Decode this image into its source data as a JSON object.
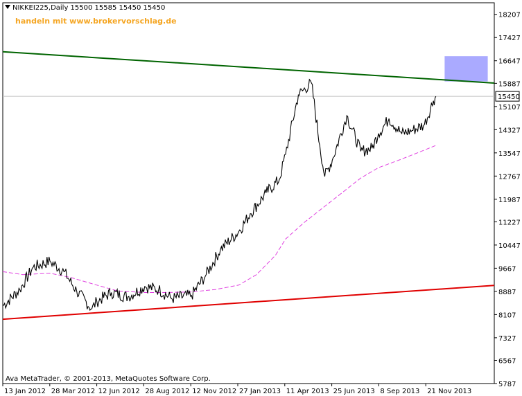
{
  "header": {
    "symbol_line": "NIKKEI225,Daily  15500 15585 15450 15450",
    "watermark": "handeln mit www.brokervorschlag.de"
  },
  "footer": {
    "copyright": "Ava MetaTrader, © 2001-2013, MetaQuotes Software Corp."
  },
  "colors": {
    "background": "#ffffff",
    "price_line": "#000000",
    "moving_average": "#e040e0",
    "upper_trendline": "#006400",
    "lower_trendline": "#e00000",
    "target_zone": "#aaaaff",
    "watermark": "#f5a623",
    "current_price_line": "#c0c0c0"
  },
  "chart_data": {
    "type": "line",
    "title": "NIKKEI225,Daily",
    "symbol": "NIKKEI225",
    "timeframe": "Daily",
    "quote": {
      "open": 15500,
      "high": 15585,
      "low": 15450,
      "close": 15450
    },
    "current_price_label": "15450",
    "y_ticks": [
      "18207",
      "17427",
      "16647",
      "15887",
      "15107",
      "14327",
      "13547",
      "12767",
      "11987",
      "11227",
      "10447",
      "9667",
      "8887",
      "8107",
      "7327",
      "6567",
      "5787"
    ],
    "x_ticks": [
      "13 Jan 2012",
      "28 Mar 2012",
      "12 Jun 2012",
      "28 Aug 2012",
      "12 Nov 2012",
      "27 Jan 2013",
      "11 Apr 2013",
      "25 Jun 2013",
      "8 Sep 2013",
      "21 Nov 2013"
    ],
    "ylim": [
      5787,
      18597
    ],
    "grid": false,
    "legend": "none",
    "series": [
      {
        "key": "close",
        "dates": [
          "2012-01-13",
          "2012-02-10",
          "2012-03-01",
          "2012-03-28",
          "2012-04-20",
          "2012-05-10",
          "2012-06-04",
          "2012-06-12",
          "2012-07-05",
          "2012-08-01",
          "2012-08-28",
          "2012-09-20",
          "2012-10-10",
          "2012-11-12",
          "2012-12-05",
          "2012-12-28",
          "2013-01-27",
          "2013-02-15",
          "2013-03-10",
          "2013-04-01",
          "2013-04-11",
          "2013-05-01",
          "2013-05-22",
          "2013-06-05",
          "2013-06-13",
          "2013-06-25",
          "2013-07-18",
          "2013-08-10",
          "2013-08-28",
          "2013-09-08",
          "2013-09-25",
          "2013-10-15",
          "2013-11-01",
          "2013-11-21",
          "2013-12-05",
          "2013-12-09"
        ],
        "values": [
          8400,
          8950,
          9700,
          9900,
          9550,
          8900,
          8300,
          8550,
          8850,
          8700,
          9050,
          8950,
          8650,
          8750,
          9450,
          10300,
          10900,
          11500,
          12200,
          12650,
          13500,
          15500,
          15900,
          13800,
          12750,
          13300,
          14800,
          13600,
          13700,
          14200,
          14700,
          14200,
          14300,
          14500,
          15300,
          15450
        ]
      },
      {
        "key": "moving_average",
        "dates": [
          "2012-01-13",
          "2012-02-15",
          "2012-03-28",
          "2012-05-01",
          "2012-06-12",
          "2012-07-15",
          "2012-08-28",
          "2012-10-01",
          "2012-11-12",
          "2012-12-20",
          "2013-01-27",
          "2013-02-25",
          "2013-03-25",
          "2013-04-11",
          "2013-05-10",
          "2013-06-10",
          "2013-07-10",
          "2013-08-10",
          "2013-09-08",
          "2013-10-10",
          "2013-11-10",
          "2013-12-09"
        ],
        "values": [
          9550,
          9450,
          9500,
          9350,
          9100,
          8900,
          8850,
          8850,
          8870,
          8950,
          9100,
          9450,
          10100,
          10650,
          11200,
          11700,
          12200,
          12700,
          13050,
          13300,
          13550,
          13800
        ]
      }
    ],
    "annotations": {
      "upper_trendline": {
        "from": [
          "2012-01-13",
          16950
        ],
        "to": [
          "2014-02-01",
          15950
        ]
      },
      "lower_trendline": {
        "from": [
          "2012-01-13",
          7950
        ],
        "to": [
          "2014-02-01",
          9030
        ]
      },
      "target_zone": {
        "from_date": "2013-12-23",
        "to_date": "2014-03-01",
        "low": 15950,
        "high": 16800
      },
      "current_price": 15450
    }
  }
}
